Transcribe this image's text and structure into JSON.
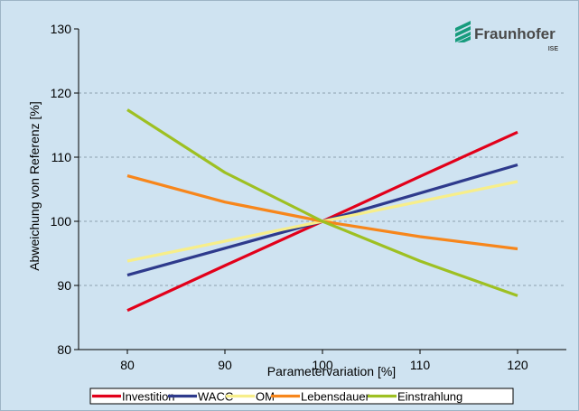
{
  "logo": {
    "name": "Fraunhofer",
    "sub": "ISE",
    "icon": "fraunhofer-logo-icon",
    "color": "#179c7d"
  },
  "colors": {
    "background": "#cfe3f1",
    "grid": "#7a8a9a"
  },
  "chart_data": {
    "type": "line",
    "title": "",
    "xlabel": "Parametervariation [%]",
    "ylabel": "Abweichung von Referenz [%]",
    "x": [
      80,
      90,
      100,
      110,
      120
    ],
    "xlim": [
      75,
      125
    ],
    "ylim": [
      80,
      130
    ],
    "xticks": [
      80,
      90,
      100,
      110,
      120
    ],
    "yticks": [
      80,
      90,
      100,
      110,
      120,
      130
    ],
    "grid": "horizontal dashed",
    "legend_position": "bottom",
    "series": [
      {
        "name": "Investition",
        "color": "#e2001a",
        "values": [
          86.1,
          93.1,
          100,
          107,
          113.9
        ]
      },
      {
        "name": "WACC",
        "color": "#2e3a8c",
        "values": [
          91.6,
          95.8,
          100,
          104.4,
          108.8
        ]
      },
      {
        "name": "OM",
        "color": "#f7ee8a",
        "values": [
          93.8,
          96.9,
          100,
          103.1,
          106.2
        ]
      },
      {
        "name": "Lebensdauer",
        "color": "#f7861b",
        "values": [
          107.1,
          103.0,
          100,
          97.6,
          95.7
        ]
      },
      {
        "name": "Einstrahlung",
        "color": "#9ec022",
        "values": [
          117.4,
          107.6,
          100,
          93.8,
          88.4
        ]
      }
    ]
  }
}
